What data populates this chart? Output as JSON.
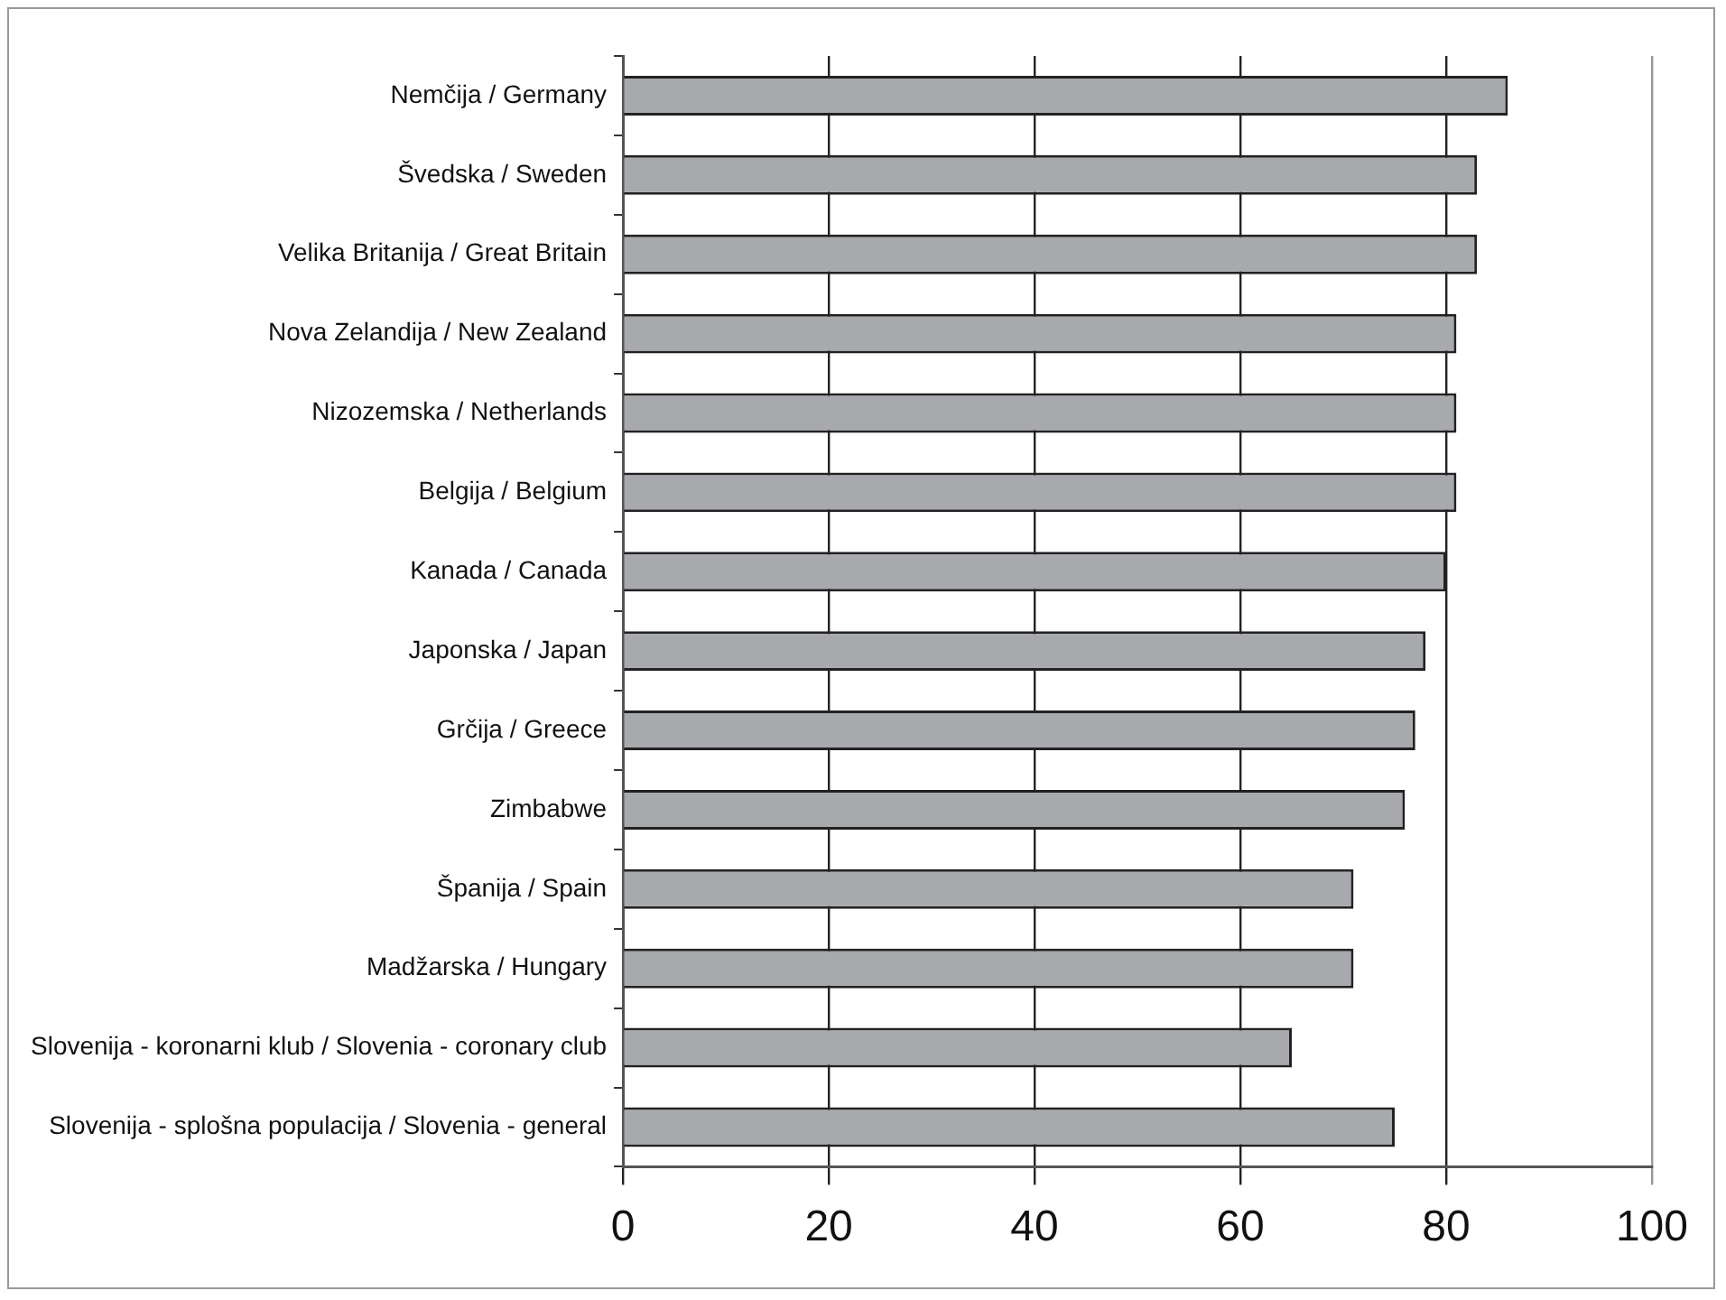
{
  "chart_data": {
    "type": "bar",
    "orientation": "horizontal",
    "categories": [
      "Nemčija / Germany",
      "Švedska / Sweden",
      "Velika Britanija / Great Britain",
      "Nova Zelandija / New Zealand",
      "Nizozemska / Netherlands",
      "Belgija / Belgium",
      "Kanada / Canada",
      "Japonska / Japan",
      "Grčija / Greece",
      "Zimbabwe",
      "Španija / Spain",
      "Madžarska / Hungary",
      "Slovenija - koronarni klub / Slovenia - coronary club",
      "Slovenija - splošna populacija / Slovenia - general"
    ],
    "values": [
      86,
      83,
      83,
      81,
      81,
      81,
      80,
      78,
      77,
      76,
      71,
      71,
      65,
      75
    ],
    "color": "#a7a9ac",
    "xlim": [
      0,
      100
    ],
    "xticks": [
      0,
      20,
      40,
      60,
      80,
      100
    ],
    "grid": "x",
    "legend": false
  }
}
